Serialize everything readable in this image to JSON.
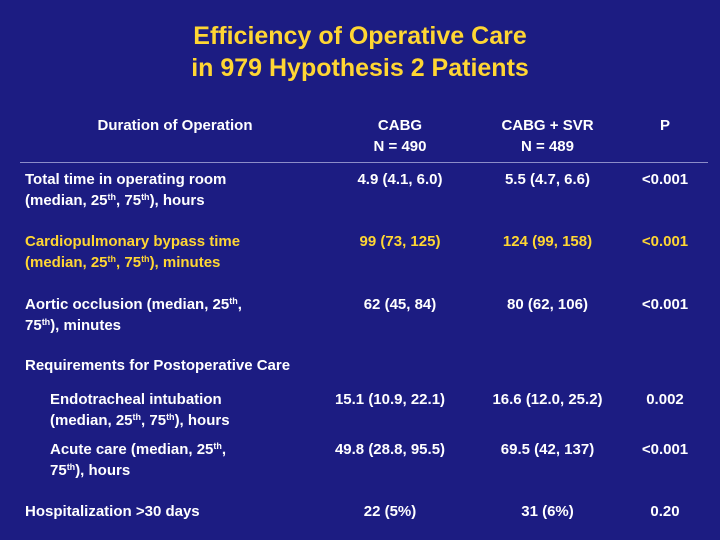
{
  "title": {
    "line1": "Efficiency of Operative Care",
    "line2": "in 979 Hypothesis 2 Patients"
  },
  "header": {
    "col1": "Duration of Operation",
    "col2_line1": "CABG",
    "col2_line2": "N = 490",
    "col3_line1": "CABG + SVR",
    "col3_line2": "N = 489",
    "col4": "P"
  },
  "rows": {
    "or_time": {
      "label_a": "Total time in operating room",
      "label_b1": "(median, 25",
      "sup1": "th",
      "label_b2": ", 75",
      "sup2": "th",
      "label_b3": "), hours",
      "cabg": "4.9 (4.1, 6.0)",
      "svr": "5.5 (4.7, 6.6)",
      "p": "<0.001"
    },
    "cpb_time": {
      "label_a": "Cardiopulmonary bypass time",
      "label_b1": "(median, 25",
      "sup1": "th",
      "label_b2": ", 75",
      "sup2": "th",
      "label_b3": "), minutes",
      "cabg": "99 (73, 125)",
      "svr": "124 (99, 158)",
      "p": "<0.001",
      "color": "#ffd633"
    },
    "aortic": {
      "label_a1": "Aortic occlusion (median, 25",
      "sup1": "th",
      "label_a2": ",",
      "label_b1": "75",
      "sup2": "th",
      "label_b2": "), minutes",
      "cabg": "62 (45, 84)",
      "svr": "80 (62, 106)",
      "p": "<0.001"
    },
    "requirements": {
      "label": "Requirements for Postoperative Care"
    },
    "intubation": {
      "label_a": "Endotracheal intubation",
      "label_b1": "(median, 25",
      "sup1": "th",
      "label_b2": ", 75",
      "sup2": "th",
      "label_b3": "), hours",
      "cabg": "15.1 (10.9, 22.1)",
      "svr": "16.6 (12.0, 25.2)",
      "p": "0.002"
    },
    "acute": {
      "label_a1": "Acute care (median, 25",
      "sup1": "th",
      "label_a2": ",",
      "label_b1": "75",
      "sup2": "th",
      "label_b2": "), hours",
      "cabg": "49.8 (28.8, 95.5)",
      "svr": "69.5 (42, 137)",
      "p": "<0.001"
    },
    "hospitalization": {
      "label": "Hospitalization >30 days",
      "cabg": "22 (5%)",
      "svr": "31 (6%)",
      "p": "0.20"
    }
  },
  "colors": {
    "background": "#1c1c82",
    "accent": "#ffd633",
    "text": "#ffffff"
  }
}
